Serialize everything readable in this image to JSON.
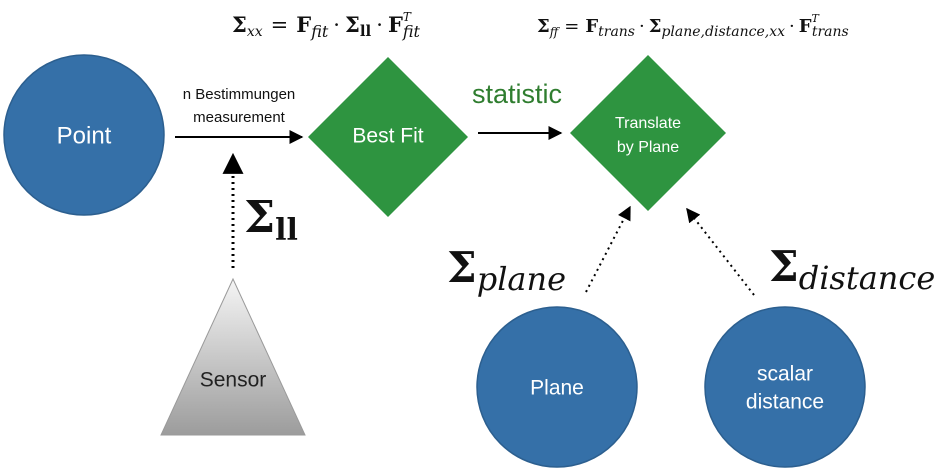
{
  "colors": {
    "circle_fill": "#3570a8",
    "circle_stroke": "#2c5f8f",
    "diamond_fill": "#2e9440",
    "statistic_text": "#2f7d2f",
    "sensor_gradient_top": "#f5f5f5",
    "sensor_gradient_bottom": "#9c9c9c"
  },
  "formulas": {
    "sigma_xx": {
      "lhs_symbol": "Σ",
      "lhs_sub": "xx",
      "equals": "=",
      "f1": "F",
      "f1_sub": "fit",
      "dot": "·",
      "sigma": "Σ",
      "sigma_sub": "ll",
      "f2": "F",
      "f2_sub": "fit",
      "f2_sup": "T"
    },
    "sigma_ff": {
      "lhs_symbol": "Σ",
      "lhs_sub": "ff",
      "equals": "=",
      "f1": "F",
      "f1_sub": "trans",
      "dot": "·",
      "sigma": "Σ",
      "sigma_sub": "plane,distance,xx",
      "f2": "F",
      "f2_sub": "trans",
      "f2_sup": "T"
    }
  },
  "nodes": {
    "point": {
      "label": "Point"
    },
    "best_fit": {
      "label": "Best Fit"
    },
    "translate": {
      "line1": "Translate",
      "line2": "by Plane"
    },
    "sensor": {
      "label": "Sensor"
    },
    "plane": {
      "label": "Plane"
    },
    "scalar_distance": {
      "line1": "scalar",
      "line2": "distance"
    }
  },
  "edges": {
    "point_to_bestfit": {
      "line1": "n Bestimmungen",
      "line2": "measurement"
    },
    "bestfit_to_translate": {
      "label": "statistic"
    }
  },
  "sigma_labels": {
    "ll": {
      "symbol": "Σ",
      "sub": "ll"
    },
    "plane": {
      "symbol": "Σ",
      "sub": "plane"
    },
    "distance": {
      "symbol": "Σ",
      "sub": "distance"
    }
  }
}
